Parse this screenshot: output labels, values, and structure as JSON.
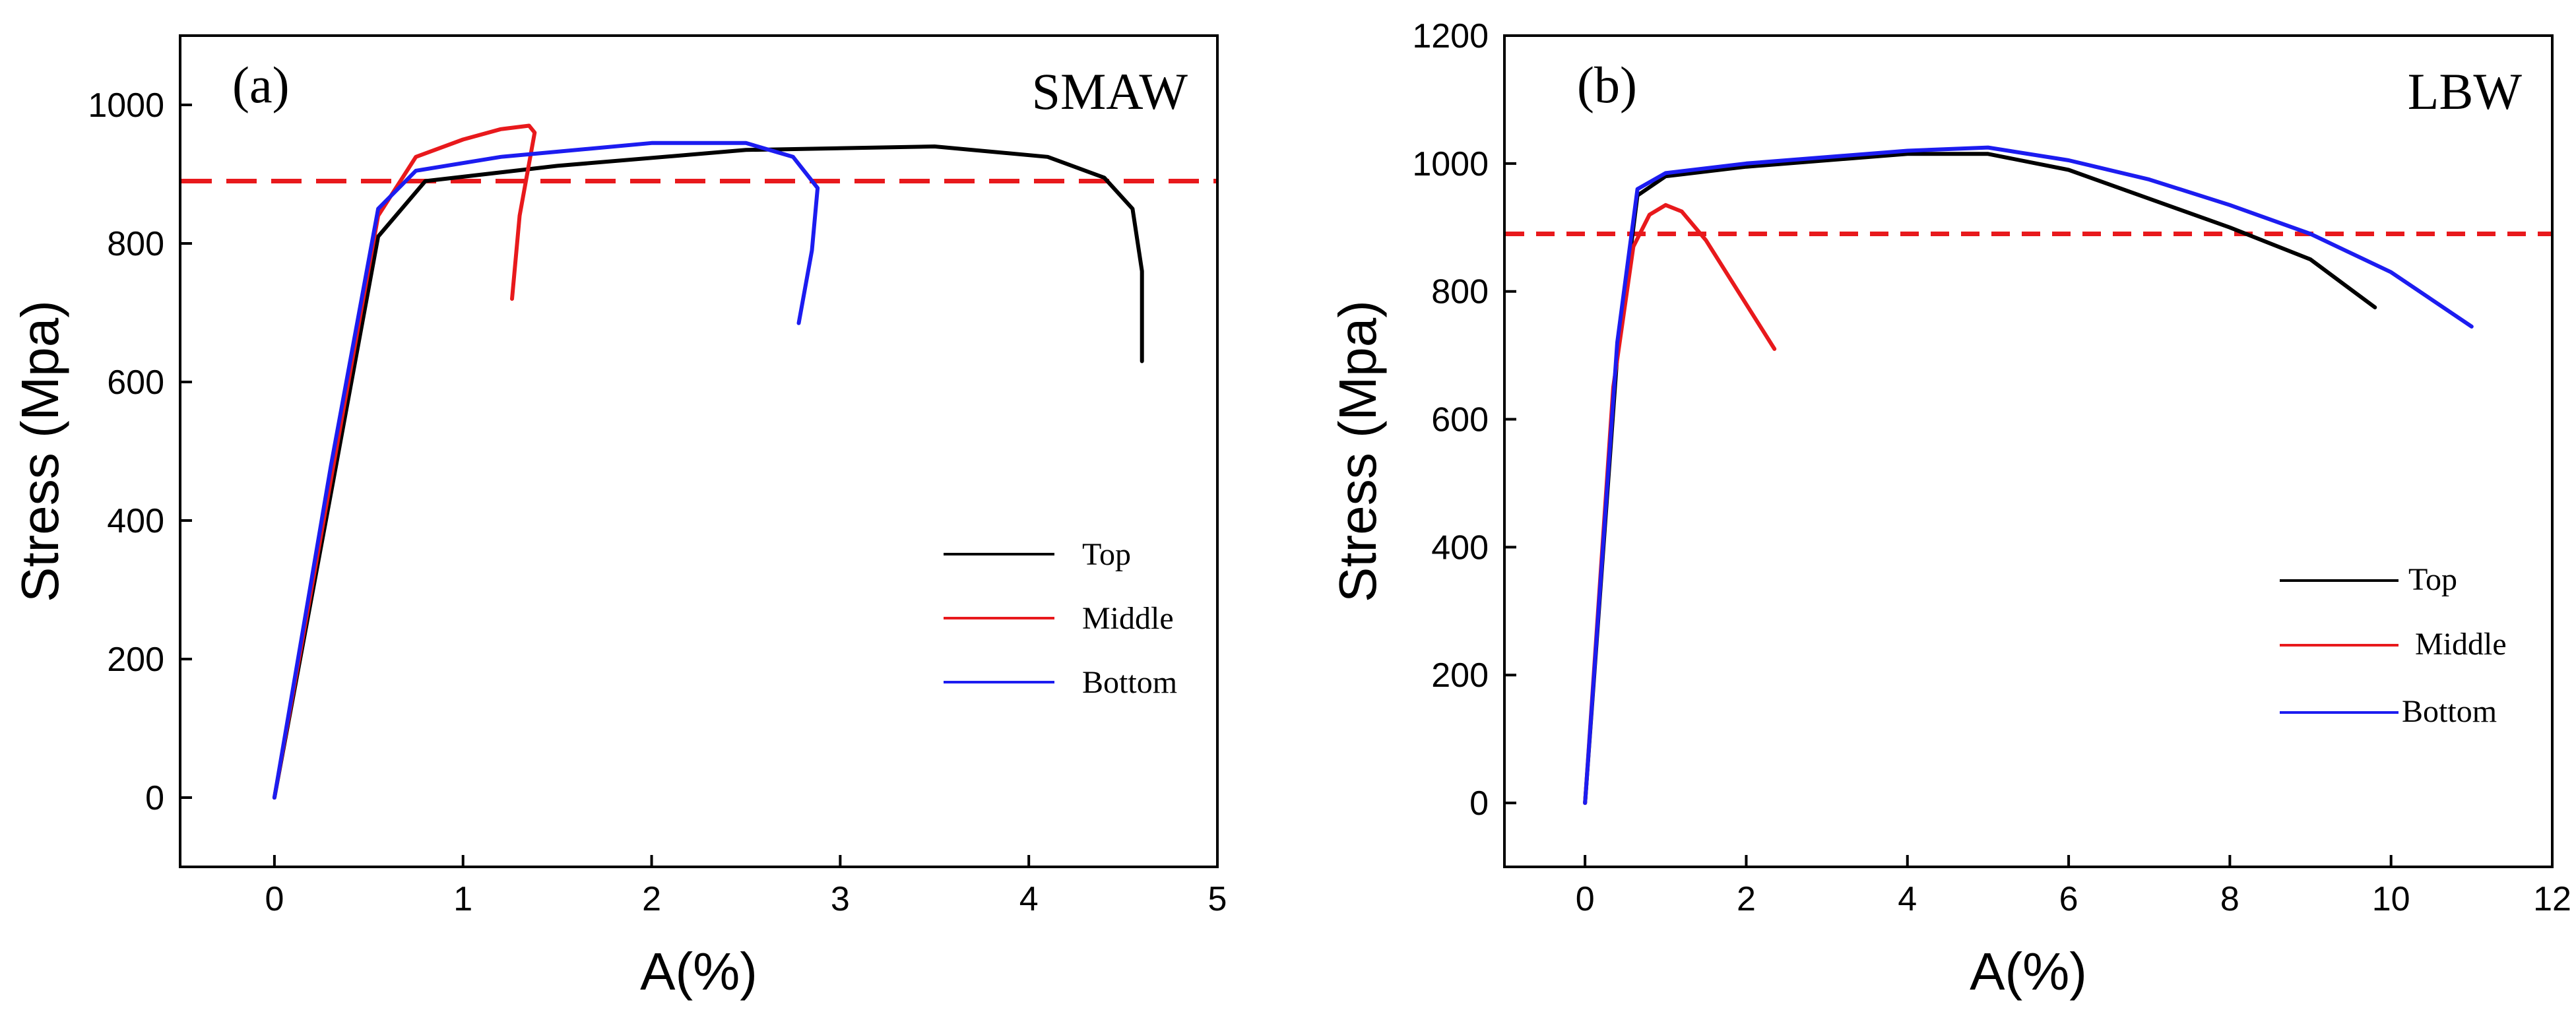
{
  "chart_data": [
    {
      "type": "line",
      "panel_label": "(a)",
      "title": "SMAW",
      "xlabel": "A(%)",
      "ylabel": "Stress (Mpa)",
      "xlim": [
        -0.5,
        5
      ],
      "ylim": [
        -100,
        1100
      ],
      "xticks": [
        0,
        1,
        2,
        3,
        4,
        5
      ],
      "yticks": [
        0,
        200,
        400,
        600,
        800,
        1000
      ],
      "reference_line": {
        "y": 890,
        "style": "dashed",
        "color": "#e8191c"
      },
      "legend": {
        "position": "bottom-right"
      },
      "series": [
        {
          "name": "Top",
          "color": "#000000",
          "points": [
            [
              0,
              0
            ],
            [
              0.3,
              440
            ],
            [
              0.55,
              810
            ],
            [
              0.8,
              890
            ],
            [
              1.5,
              912
            ],
            [
              2.5,
              935
            ],
            [
              3.5,
              940
            ],
            [
              4.1,
              925
            ],
            [
              4.4,
              895
            ],
            [
              4.55,
              850
            ],
            [
              4.6,
              760
            ],
            [
              4.6,
              630
            ]
          ]
        },
        {
          "name": "Middle",
          "color": "#e8191c",
          "points": [
            [
              0,
              0
            ],
            [
              0.3,
              460
            ],
            [
              0.55,
              840
            ],
            [
              0.75,
              925
            ],
            [
              1.0,
              950
            ],
            [
              1.2,
              965
            ],
            [
              1.35,
              970
            ],
            [
              1.38,
              960
            ],
            [
              1.3,
              840
            ],
            [
              1.26,
              720
            ]
          ]
        },
        {
          "name": "Bottom",
          "color": "#1c1cf0",
          "points": [
            [
              0,
              0
            ],
            [
              0.3,
              480
            ],
            [
              0.55,
              850
            ],
            [
              0.75,
              905
            ],
            [
              1.2,
              925
            ],
            [
              2.0,
              945
            ],
            [
              2.5,
              945
            ],
            [
              2.75,
              925
            ],
            [
              2.88,
              880
            ],
            [
              2.85,
              790
            ],
            [
              2.78,
              685
            ]
          ]
        }
      ]
    },
    {
      "type": "line",
      "panel_label": "(b)",
      "title": "LBW",
      "xlabel": "A(%)",
      "ylabel": "Stress (Mpa)",
      "xlim": [
        -1,
        12
      ],
      "ylim": [
        -100,
        1200
      ],
      "xticks": [
        0,
        2,
        4,
        6,
        8,
        10,
        12
      ],
      "yticks": [
        0,
        200,
        400,
        600,
        800,
        1000,
        1200
      ],
      "reference_line": {
        "y": 890,
        "style": "dashed",
        "color": "#e8191c"
      },
      "legend": {
        "position": "bottom-right"
      },
      "series": [
        {
          "name": "Top",
          "color": "#000000",
          "points": [
            [
              0,
              0
            ],
            [
              0.4,
              700
            ],
            [
              0.65,
              950
            ],
            [
              1.0,
              980
            ],
            [
              2.0,
              995
            ],
            [
              4.0,
              1015
            ],
            [
              5.0,
              1015
            ],
            [
              6.0,
              990
            ],
            [
              7.0,
              945
            ],
            [
              8.0,
              900
            ],
            [
              9.0,
              850
            ],
            [
              9.8,
              775
            ]
          ]
        },
        {
          "name": "Middle",
          "color": "#e8191c",
          "points": [
            [
              0,
              0
            ],
            [
              0.35,
              650
            ],
            [
              0.6,
              870
            ],
            [
              0.8,
              920
            ],
            [
              1.0,
              935
            ],
            [
              1.2,
              925
            ],
            [
              1.5,
              880
            ],
            [
              1.9,
              800
            ],
            [
              2.2,
              740
            ],
            [
              2.35,
              710
            ]
          ]
        },
        {
          "name": "Bottom",
          "color": "#1c1cf0",
          "points": [
            [
              0,
              0
            ],
            [
              0.4,
              720
            ],
            [
              0.65,
              960
            ],
            [
              1.0,
              985
            ],
            [
              2.0,
              1000
            ],
            [
              4.0,
              1020
            ],
            [
              5.0,
              1025
            ],
            [
              6.0,
              1005
            ],
            [
              7.0,
              975
            ],
            [
              8.0,
              935
            ],
            [
              9.0,
              890
            ],
            [
              10.0,
              830
            ],
            [
              11.0,
              745
            ]
          ]
        }
      ]
    }
  ]
}
